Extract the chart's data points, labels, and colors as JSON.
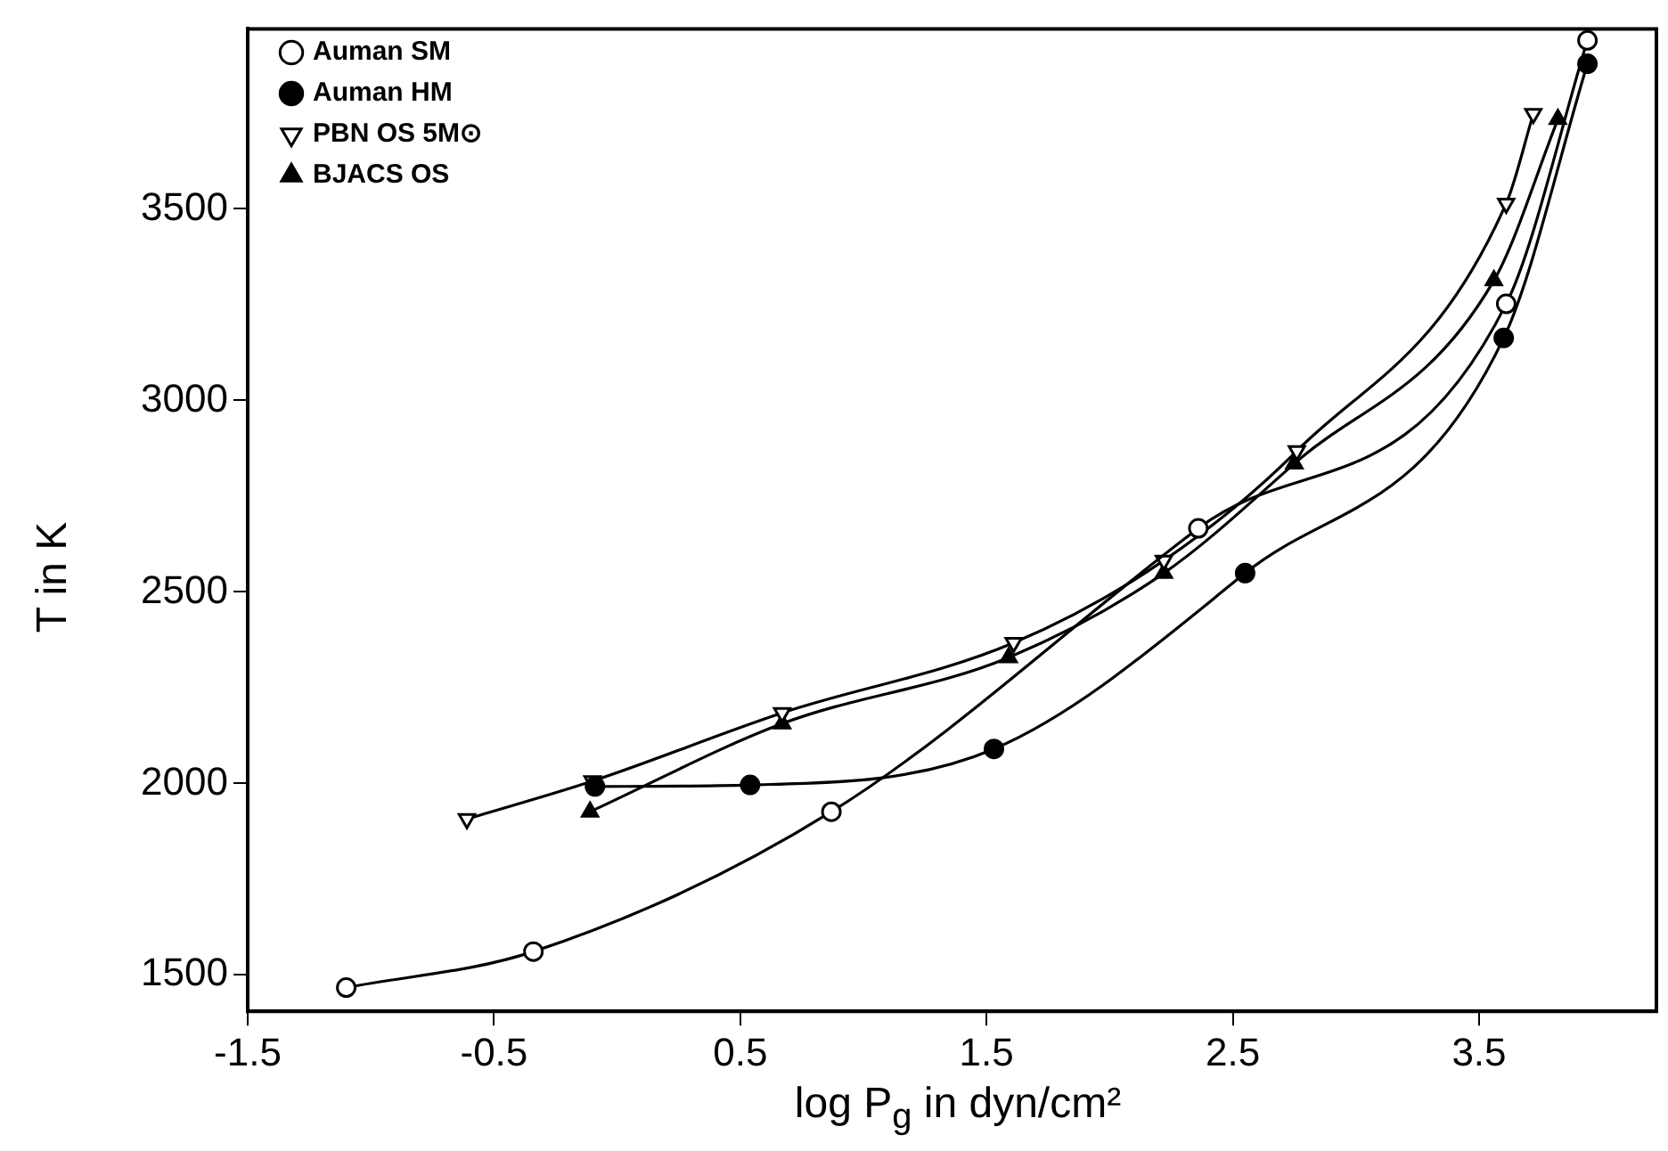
{
  "chart_data": {
    "type": "line",
    "xlabel": "log P$_{g}$ in dyn/cm²",
    "ylabel": "T in K",
    "xlim": [
      -1.5,
      4.22
    ],
    "ylim": [
      1405,
      3970
    ],
    "xticks": [
      -1.5,
      -0.5,
      0.5,
      1.5,
      2.5,
      3.5
    ],
    "yticks": [
      1500,
      2000,
      2500,
      3000,
      3500
    ],
    "grid": false,
    "legend": "top left",
    "line_style": "solid",
    "series": [
      {
        "name": "Auman SM",
        "color": "#000000",
        "marker": "circle-open",
        "x": [
          -1.1,
          -0.34,
          0.87,
          2.36,
          3.61,
          3.94
        ],
        "values": [
          1467,
          1561,
          1926,
          2666,
          3252,
          3940
        ]
      },
      {
        "name": "Auman HM",
        "color": "#000000",
        "marker": "circle",
        "x": [
          -0.09,
          0.54,
          1.53,
          2.55,
          3.6,
          3.94
        ],
        "values": [
          1992,
          1996,
          2090,
          2549,
          3163,
          3879
        ]
      },
      {
        "name": "PBN OS 5M⊙",
        "color": "#000000",
        "marker": "triangle-down-open",
        "x": [
          -0.61,
          -0.1,
          0.67,
          1.61,
          2.22,
          2.76,
          3.61,
          3.72
        ],
        "values": [
          1907,
          2006,
          2184,
          2367,
          2582,
          2868,
          3514,
          3748
        ]
      },
      {
        "name": "BJACS OS",
        "color": "#000000",
        "marker": "triangle",
        "x": [
          -0.11,
          0.67,
          1.59,
          2.22,
          2.75,
          3.56,
          3.82
        ],
        "values": [
          1926,
          2156,
          2329,
          2549,
          2835,
          3313,
          3734
        ]
      }
    ]
  }
}
